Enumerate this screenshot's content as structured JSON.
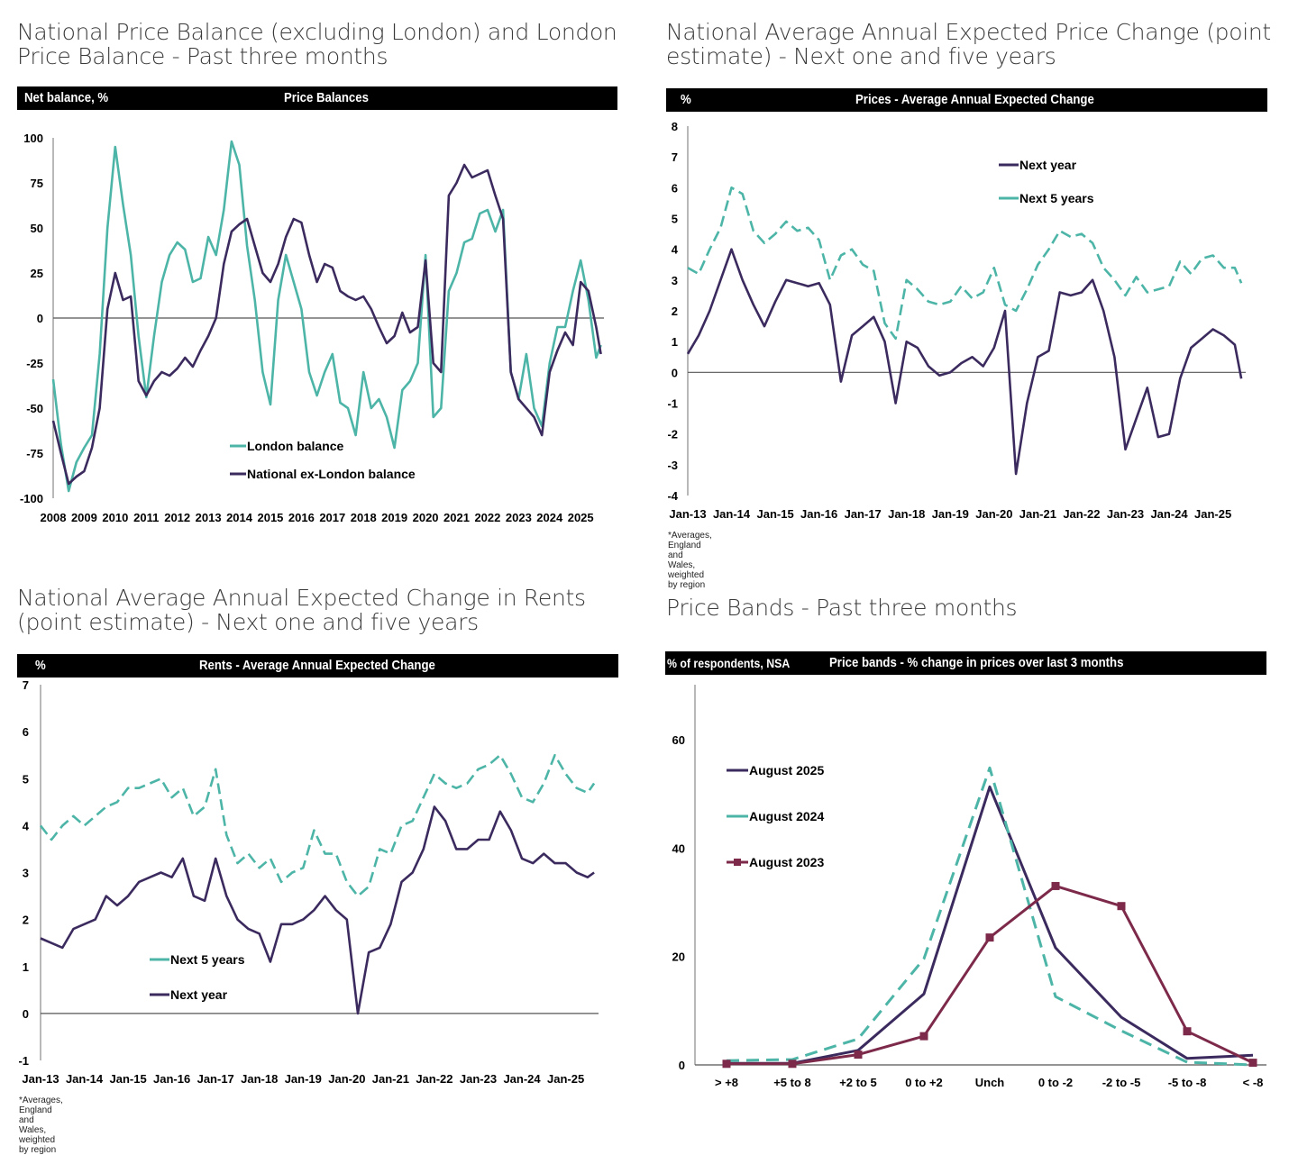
{
  "colors": {
    "teal": "#4db5a7",
    "purple": "#3b2a5e",
    "maroon": "#7d2a4a",
    "axis": "#7a7a7a"
  },
  "panels": {
    "p1": {
      "title": "National Price Balance (excluding London) and London Price Balance - Past three months",
      "bar_label": "Net balance, %",
      "bar_title": "Price Balances"
    },
    "p2": {
      "title": "National Average Annual Expected Price Change (point estimate) - Next one and five years",
      "bar_label": "%",
      "bar_title": "Prices -  Average Annual Expected Change",
      "note": "*Averages, England and Wales, weighted by region"
    },
    "p3": {
      "title": "National Average Annual Expected Change in Rents (point estimate) - Next one and five years",
      "bar_label": "%",
      "bar_title": "Rents  -  Average Annual Expected Change",
      "note": "*Averages, England and Wales, weighted by region"
    },
    "p4": {
      "title": "Price Bands - Past three months",
      "bar_label": "% of respondents, NSA",
      "bar_title": "Price bands - % change in prices over last 3 months"
    }
  },
  "chart_data": [
    {
      "id": "price-balances",
      "type": "line",
      "title": "Price Balances",
      "ylabel": "Net balance, %",
      "ylim": [
        -100,
        100
      ],
      "yticks": [
        100,
        75,
        50,
        25,
        0,
        -25,
        -50,
        -75,
        -100
      ],
      "xlim": [
        2008,
        2025.75
      ],
      "xticks": [
        "2008",
        "2009",
        "2010",
        "2011",
        "2012",
        "2013",
        "2014",
        "2015",
        "2016",
        "2017",
        "2018",
        "2019",
        "2020",
        "2021",
        "2022",
        "2023",
        "2024",
        "2025"
      ],
      "legend_position": "bottom-center",
      "x": [
        2008,
        2008.25,
        2008.5,
        2008.75,
        2009,
        2009.25,
        2009.5,
        2009.75,
        2010,
        2010.25,
        2010.5,
        2010.75,
        2011,
        2011.25,
        2011.5,
        2011.75,
        2012,
        2012.25,
        2012.5,
        2012.75,
        2013,
        2013.25,
        2013.5,
        2013.75,
        2014,
        2014.25,
        2014.5,
        2014.75,
        2015,
        2015.25,
        2015.5,
        2015.75,
        2016,
        2016.25,
        2016.5,
        2016.75,
        2017,
        2017.25,
        2017.5,
        2017.75,
        2018,
        2018.25,
        2018.5,
        2018.75,
        2019,
        2019.25,
        2019.5,
        2019.75,
        2020,
        2020.25,
        2020.5,
        2020.75,
        2021,
        2021.25,
        2021.5,
        2021.75,
        2022,
        2022.25,
        2022.5,
        2022.75,
        2023,
        2023.25,
        2023.5,
        2023.75,
        2024,
        2024.25,
        2024.5,
        2024.75,
        2025,
        2025.25,
        2025.5,
        2025.65
      ],
      "series": [
        {
          "name": "London balance",
          "style": "solid",
          "color": "#4db5a7",
          "values": [
            -34,
            -70,
            -96,
            -80,
            -72,
            -65,
            -20,
            50,
            95,
            63,
            35,
            -10,
            -44,
            -10,
            20,
            35,
            42,
            38,
            20,
            22,
            45,
            35,
            60,
            98,
            85,
            40,
            10,
            -30,
            -48,
            10,
            35,
            20,
            5,
            -30,
            -43,
            -30,
            -20,
            -47,
            -50,
            -65,
            -30,
            -50,
            -45,
            -55,
            -72,
            -40,
            -35,
            -25,
            35,
            -55,
            -50,
            15,
            25,
            42,
            44,
            58,
            60,
            48,
            60,
            -30,
            -45,
            -20,
            -50,
            -60,
            -25,
            -5,
            -5,
            15,
            32,
            10,
            -22,
            -15
          ]
        },
        {
          "name": "National ex-London balance",
          "style": "solid",
          "color": "#3b2a5e",
          "values": [
            -57,
            -75,
            -92,
            -88,
            -85,
            -72,
            -50,
            5,
            25,
            10,
            12,
            -35,
            -43,
            -35,
            -30,
            -32,
            -28,
            -22,
            -27,
            -18,
            -10,
            0,
            30,
            48,
            52,
            55,
            40,
            25,
            20,
            30,
            45,
            55,
            53,
            35,
            20,
            30,
            28,
            15,
            12,
            10,
            12,
            5,
            -5,
            -14,
            -10,
            3,
            -8,
            -5,
            32,
            -25,
            -30,
            68,
            75,
            85,
            78,
            80,
            82,
            68,
            55,
            -30,
            -45,
            -50,
            -55,
            -65,
            -30,
            -18,
            -8,
            -15,
            20,
            15,
            -5,
            -20
          ]
        }
      ]
    },
    {
      "id": "prices-expected-change",
      "type": "line",
      "title": "Prices -  Average Annual Expected Change",
      "ylabel": "%",
      "ylim": [
        -4,
        8
      ],
      "yticks": [
        8,
        7,
        6,
        5,
        4,
        3,
        2,
        1,
        0,
        -1,
        -2,
        -3,
        -4
      ],
      "xlim": [
        2013,
        2025.75
      ],
      "xticks": [
        "Jan-13",
        "Jan-14",
        "Jan-15",
        "Jan-16",
        "Jan-17",
        "Jan-18",
        "Jan-19",
        "Jan-20",
        "Jan-21",
        "Jan-22",
        "Jan-23",
        "Jan-24",
        "Jan-25"
      ],
      "legend_position": "top-center",
      "x": [
        2013,
        2013.25,
        2013.5,
        2013.75,
        2014,
        2014.25,
        2014.5,
        2014.75,
        2015,
        2015.25,
        2015.5,
        2015.75,
        2016,
        2016.25,
        2016.5,
        2016.75,
        2017,
        2017.25,
        2017.5,
        2017.75,
        2018,
        2018.25,
        2018.5,
        2018.75,
        2019,
        2019.25,
        2019.5,
        2019.75,
        2020,
        2020.25,
        2020.5,
        2020.75,
        2021,
        2021.25,
        2021.5,
        2021.75,
        2022,
        2022.25,
        2022.5,
        2022.75,
        2023,
        2023.25,
        2023.5,
        2023.75,
        2024,
        2024.25,
        2024.5,
        2024.75,
        2025,
        2025.25,
        2025.5,
        2025.65
      ],
      "series": [
        {
          "name": "Next year",
          "style": "solid",
          "color": "#3b2a5e",
          "values": [
            0.6,
            1.2,
            2.0,
            3.0,
            4.0,
            3.0,
            2.2,
            1.5,
            2.3,
            3.0,
            2.9,
            2.8,
            2.9,
            2.2,
            -0.3,
            1.2,
            1.5,
            1.8,
            1.0,
            -1.0,
            1.0,
            0.8,
            0.2,
            -0.1,
            0.0,
            0.3,
            0.5,
            0.2,
            0.8,
            2.0,
            -3.3,
            -1.0,
            0.5,
            0.7,
            2.6,
            2.5,
            2.6,
            3.0,
            2.0,
            0.5,
            -2.5,
            -1.5,
            -0.5,
            -2.1,
            -2.0,
            -0.2,
            0.8,
            1.1,
            1.4,
            1.2,
            0.9,
            -0.2
          ]
        },
        {
          "name": "Next 5 years",
          "style": "dashed",
          "color": "#4db5a7",
          "values": [
            3.4,
            3.2,
            4.0,
            4.7,
            6.0,
            5.8,
            4.6,
            4.2,
            4.5,
            4.9,
            4.6,
            4.7,
            4.3,
            3.0,
            3.8,
            4.0,
            3.5,
            3.3,
            1.6,
            1.1,
            3.0,
            2.7,
            2.3,
            2.2,
            2.3,
            2.8,
            2.4,
            2.6,
            3.4,
            2.2,
            2.0,
            2.7,
            3.5,
            4.0,
            4.6,
            4.4,
            4.5,
            4.2,
            3.4,
            3.0,
            2.5,
            3.1,
            2.6,
            2.7,
            2.8,
            3.6,
            3.2,
            3.7,
            3.8,
            3.4,
            3.4,
            2.9
          ]
        }
      ]
    },
    {
      "id": "rents-expected-change",
      "type": "line",
      "title": "Rents  -  Average Annual Expected Change",
      "ylabel": "%",
      "ylim": [
        -1,
        7
      ],
      "yticks": [
        7,
        6,
        5,
        4,
        3,
        2,
        1,
        0,
        -1
      ],
      "xlim": [
        2013,
        2025.75
      ],
      "xticks": [
        "Jan-13",
        "Jan-14",
        "Jan-15",
        "Jan-16",
        "Jan-17",
        "Jan-18",
        "Jan-19",
        "Jan-20",
        "Jan-21",
        "Jan-22",
        "Jan-23",
        "Jan-24",
        "Jan-25"
      ],
      "legend_position": "bottom-left",
      "x": [
        2013,
        2013.25,
        2013.5,
        2013.75,
        2014,
        2014.25,
        2014.5,
        2014.75,
        2015,
        2015.25,
        2015.5,
        2015.75,
        2016,
        2016.25,
        2016.5,
        2016.75,
        2017,
        2017.25,
        2017.5,
        2017.75,
        2018,
        2018.25,
        2018.5,
        2018.75,
        2019,
        2019.25,
        2019.5,
        2019.75,
        2020,
        2020.25,
        2020.5,
        2020.75,
        2021,
        2021.25,
        2021.5,
        2021.75,
        2022,
        2022.25,
        2022.5,
        2022.75,
        2023,
        2023.25,
        2023.5,
        2023.75,
        2024,
        2024.25,
        2024.5,
        2024.75,
        2025,
        2025.25,
        2025.5,
        2025.65
      ],
      "series": [
        {
          "name": "Next 5 years",
          "style": "dashed",
          "color": "#4db5a7",
          "values": [
            4.0,
            3.7,
            4.0,
            4.2,
            4.0,
            4.2,
            4.4,
            4.5,
            4.8,
            4.8,
            4.9,
            5.0,
            4.6,
            4.8,
            4.2,
            4.4,
            5.2,
            3.8,
            3.2,
            3.4,
            3.1,
            3.3,
            2.8,
            3.0,
            3.1,
            3.9,
            3.4,
            3.4,
            2.8,
            2.5,
            2.7,
            3.5,
            3.4,
            4.0,
            4.1,
            4.6,
            5.1,
            4.9,
            4.8,
            4.9,
            5.2,
            5.3,
            5.5,
            5.1,
            4.6,
            4.5,
            4.9,
            5.5,
            5.1,
            4.8,
            4.7,
            4.9
          ]
        },
        {
          "name": "Next year",
          "style": "solid",
          "color": "#3b2a5e",
          "values": [
            1.6,
            1.5,
            1.4,
            1.8,
            1.9,
            2.0,
            2.5,
            2.3,
            2.5,
            2.8,
            2.9,
            3.0,
            2.9,
            3.3,
            2.5,
            2.4,
            3.3,
            2.5,
            2.0,
            1.8,
            1.7,
            1.1,
            1.9,
            1.9,
            2.0,
            2.2,
            2.5,
            2.2,
            2.0,
            0.0,
            1.3,
            1.4,
            1.9,
            2.8,
            3.0,
            3.5,
            4.4,
            4.1,
            3.5,
            3.5,
            3.7,
            3.7,
            4.3,
            3.9,
            3.3,
            3.2,
            3.4,
            3.2,
            3.2,
            3.0,
            2.9,
            3.0
          ]
        }
      ]
    },
    {
      "id": "price-bands",
      "type": "line",
      "title": "Price bands - % change in prices over last 3 months",
      "ylabel": "% of respondents, NSA",
      "ylim": [
        0,
        70
      ],
      "yticks": [
        60,
        40,
        20,
        0
      ],
      "categories": [
        "> +8",
        "+5 to 8",
        "+2 to 5",
        "0 to +2",
        "Unch",
        "0 to -2",
        "-2 to -5",
        "-5 to -8",
        "< -8"
      ],
      "legend_position": "top-left",
      "series": [
        {
          "name": "August 2025",
          "style": "solid",
          "color": "#3b2a5e",
          "values": [
            0.3,
            0.3,
            2.7,
            13.1,
            51.3,
            21.6,
            8.8,
            1.2,
            1.8
          ]
        },
        {
          "name": "August 2024",
          "style": "dashed",
          "color": "#4db5a7",
          "values": [
            0.8,
            1.0,
            4.8,
            19.6,
            54.8,
            12.6,
            6.3,
            0.5,
            0.0
          ]
        },
        {
          "name": "August 2023",
          "style": "solid-markers",
          "color": "#7d2a4a",
          "values": [
            0.2,
            0.2,
            1.9,
            5.3,
            23.5,
            33.0,
            29.3,
            6.2,
            0.4
          ]
        }
      ]
    }
  ]
}
